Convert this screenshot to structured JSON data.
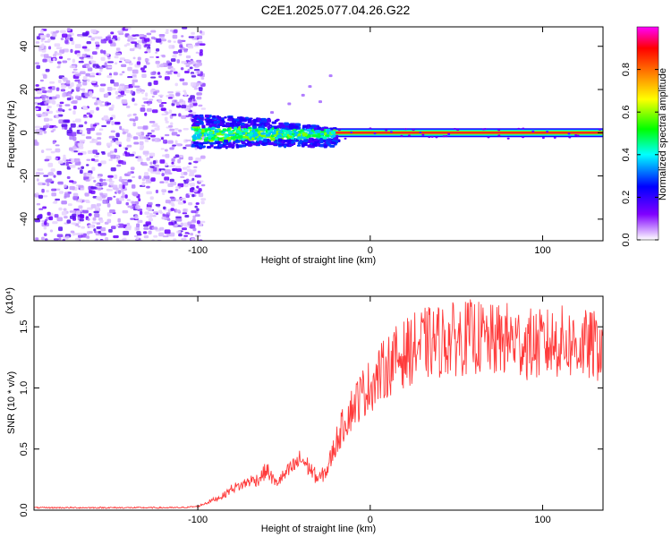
{
  "title": "C2E1.2025.077.04.26.G22",
  "chart_data": [
    {
      "type": "heatmap",
      "xlabel": "Height of straight line (km)",
      "ylabel": "Frequency (Hz)",
      "xlim": [
        -195,
        135
      ],
      "ylim": [
        -50,
        49
      ],
      "xticks": [
        -100,
        0,
        100
      ],
      "yticks": [
        -40,
        -20,
        0,
        20,
        40
      ],
      "grid": false,
      "colorbar": {
        "label": "Normalized spectral amplitude",
        "range": [
          0,
          1
        ],
        "ticks": [
          "0.0",
          "0.2",
          "0.4",
          "0.6",
          "0.8"
        ],
        "colors": [
          "#ffffff",
          "#8000ff",
          "#0000ff",
          "#00ffff",
          "#00ff00",
          "#ffff00",
          "#ff8000",
          "#ff0000",
          "#ff00ff"
        ]
      },
      "features": {
        "noise_region_x": [
          -195,
          -104
        ],
        "noise_frequency_range": [
          -50,
          49
        ],
        "spread_signal_x": [
          -104,
          -20
        ],
        "spread_frequency_range": [
          -8,
          8
        ],
        "steady_signal_x": [
          -20,
          135
        ],
        "steady_frequency": 0
      }
    },
    {
      "type": "line",
      "xlabel": "Height of straight line (km)",
      "ylabel": "SNR (10 * v/v)",
      "yscale_label": "(x10⁴)",
      "xlim": [
        -195,
        135
      ],
      "ylim": [
        0,
        1.75
      ],
      "xticks": [
        -100,
        0,
        100
      ],
      "yticks": [
        "0.0",
        "0.5",
        "1.0",
        "1.5"
      ],
      "grid": false,
      "color": "#ff3b3b",
      "series": [
        {
          "x": [
            -195,
            -150,
            -110,
            -100,
            -95,
            -90,
            -85,
            -80,
            -75,
            -70,
            -65,
            -60,
            -55,
            -50,
            -45,
            -40,
            -35,
            -30,
            -25,
            -20,
            -15,
            -10,
            -5,
            0,
            5,
            10,
            15,
            20,
            25,
            30,
            40,
            50,
            60,
            70,
            80,
            90,
            100,
            110,
            120,
            135
          ],
          "y": [
            0.02,
            0.02,
            0.02,
            0.03,
            0.06,
            0.09,
            0.12,
            0.18,
            0.2,
            0.24,
            0.25,
            0.33,
            0.22,
            0.28,
            0.35,
            0.42,
            0.34,
            0.25,
            0.33,
            0.55,
            0.72,
            0.85,
            0.95,
            1.02,
            1.1,
            1.18,
            1.24,
            1.28,
            1.32,
            1.36,
            1.38,
            1.4,
            1.42,
            1.38,
            1.4,
            1.36,
            1.35,
            1.38,
            1.35,
            1.34
          ]
        }
      ]
    }
  ]
}
